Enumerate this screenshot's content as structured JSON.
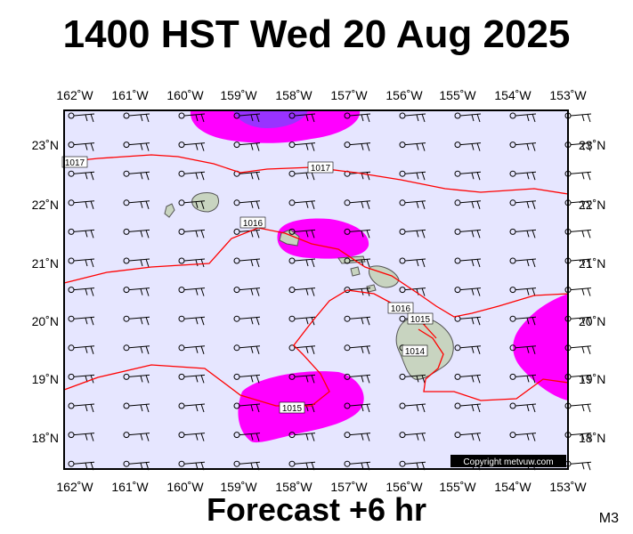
{
  "title": "1400 HST Wed 20 Aug 2025",
  "subtitle": "Forecast +6 hr",
  "model_tag": "M3",
  "copyright": "Copyright metvuw.com",
  "colors": {
    "background": "#e6e6ff",
    "rain_light": "#ff00ff",
    "rain_heavy": "#9933ff",
    "isobar": "#ff0000",
    "land": "#c8d4c0"
  },
  "axes": {
    "lon_ticks": [
      "162˚W",
      "161˚W",
      "160˚W",
      "159˚W",
      "158˚W",
      "157˚W",
      "156˚W",
      "155˚W",
      "154˚W",
      "153˚W"
    ],
    "lat_ticks": [
      "23˚N",
      "22˚N",
      "21˚N",
      "20˚N",
      "19˚N",
      "18˚N"
    ]
  },
  "isobars": [
    {
      "label": "1017"
    },
    {
      "label": "1017"
    },
    {
      "label": "1016"
    },
    {
      "label": "1016"
    },
    {
      "label": "1015"
    },
    {
      "label": "1015"
    },
    {
      "label": "1014"
    }
  ]
}
